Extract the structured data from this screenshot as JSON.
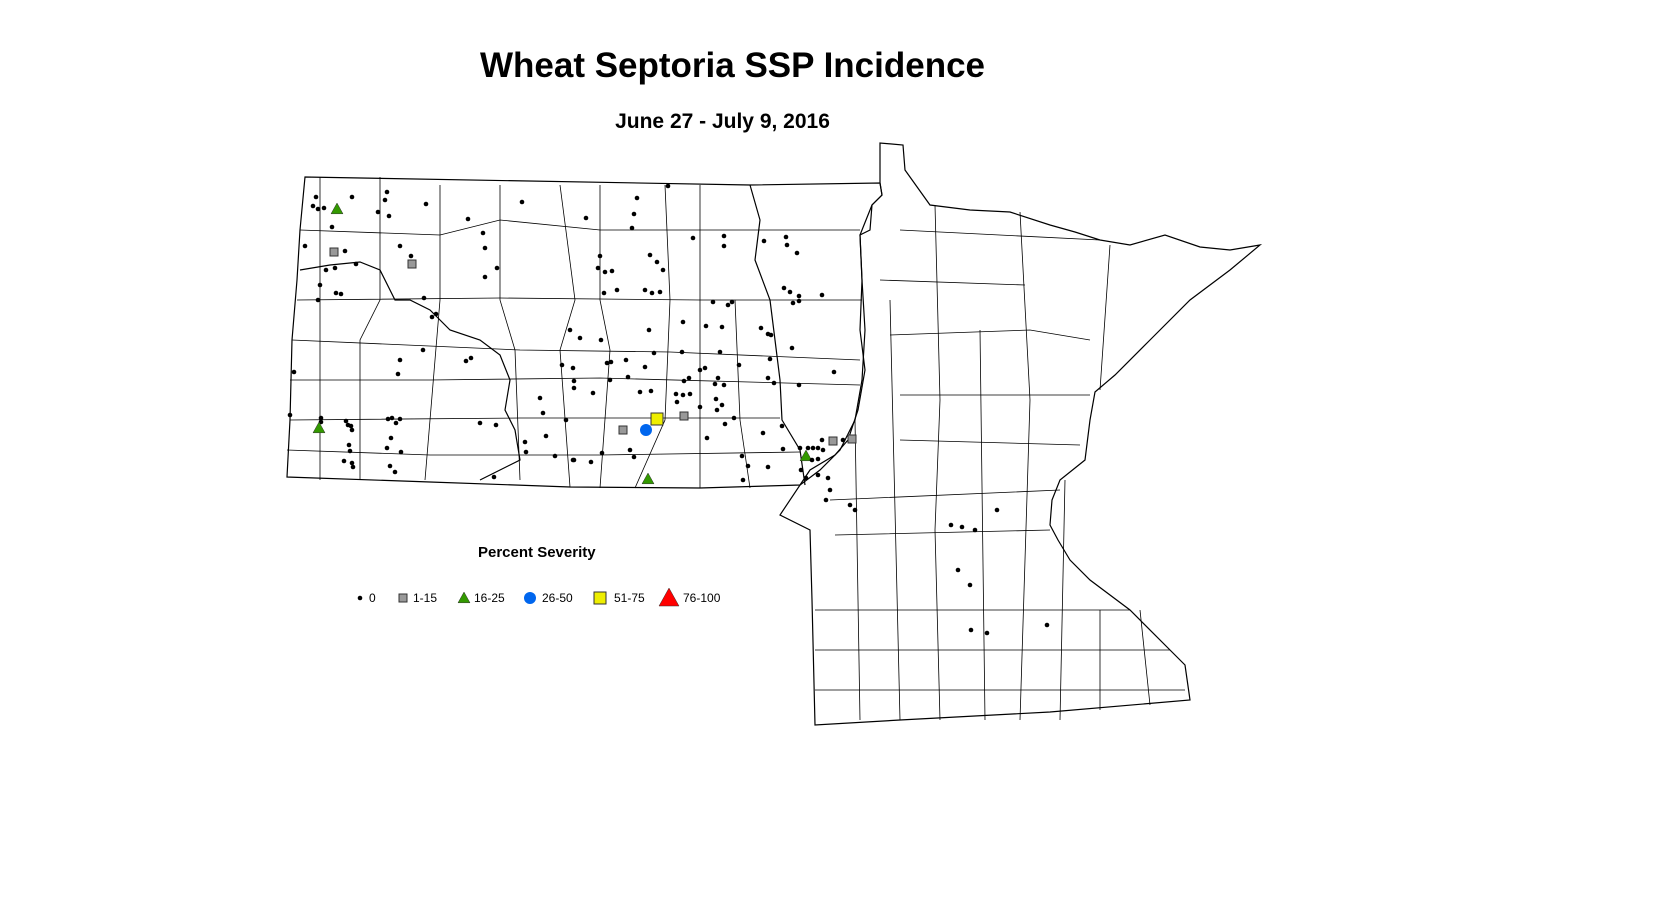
{
  "title": "Wheat Septoria SSP Incidence",
  "subtitle": "June 27 - July 9, 2016",
  "legend": {
    "title": "Percent Severity",
    "items": [
      {
        "label": "0",
        "symbol": "dot",
        "color": "#000000"
      },
      {
        "label": "1-15",
        "symbol": "square",
        "color": "#999999"
      },
      {
        "label": "16-25",
        "symbol": "triangle",
        "color": "#339900"
      },
      {
        "label": "26-50",
        "symbol": "circle",
        "color": "#0066ee"
      },
      {
        "label": "51-75",
        "symbol": "square",
        "color": "#eeee00"
      },
      {
        "label": "76-100",
        "symbol": "triangle",
        "color": "#ff0000"
      }
    ]
  }
}
